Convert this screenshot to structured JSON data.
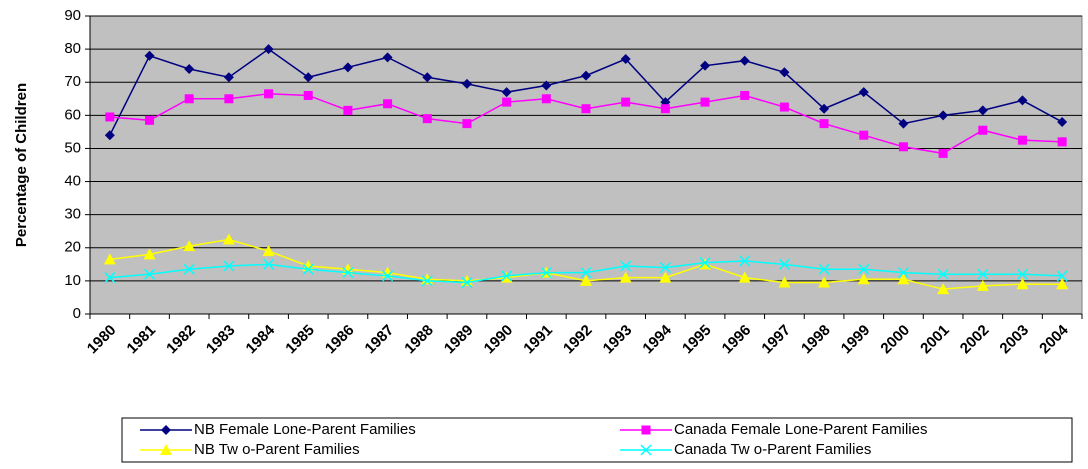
{
  "chart_data": {
    "type": "line",
    "y_label": "Percentage of Children",
    "categories": [
      "1980",
      "1981",
      "1982",
      "1983",
      "1984",
      "1985",
      "1986",
      "1987",
      "1988",
      "1989",
      "1990",
      "1991",
      "1992",
      "1993",
      "1994",
      "1995",
      "1996",
      "1997",
      "1998",
      "1999",
      "2000",
      "2001",
      "2002",
      "2003",
      "2004"
    ],
    "series": [
      {
        "name": "NB Female Lone-Parent Families",
        "color": "#000080",
        "marker": "diamond",
        "values": [
          54,
          78,
          74,
          71.5,
          80,
          71.5,
          74.5,
          77.5,
          71.5,
          69.5,
          67,
          69,
          72,
          77,
          64,
          75,
          76.5,
          73,
          62,
          67,
          57.5,
          60,
          61.5,
          64.5,
          58
        ]
      },
      {
        "name": "Canada Female Lone-Parent Families",
        "color": "#ff00ff",
        "marker": "square",
        "values": [
          59.5,
          58.5,
          65,
          65,
          66.5,
          66,
          61.5,
          63.5,
          59,
          57.5,
          64,
          65,
          62,
          64,
          62,
          64,
          66,
          62.5,
          57.5,
          54,
          50.5,
          48.5,
          55.5,
          52.5,
          52
        ]
      },
      {
        "name": "NB Tw o-Parent Families",
        "color": "#ffff00",
        "marker": "triangle",
        "values": [
          16.5,
          18,
          20.5,
          22.5,
          19,
          14.5,
          13.5,
          12.5,
          10.5,
          10,
          11,
          12.5,
          10,
          11,
          11,
          15,
          11,
          9.5,
          9.5,
          10.5,
          10.5,
          7.5,
          8.5,
          9,
          9
        ]
      },
      {
        "name": "Canada Tw o-Parent Families",
        "color": "#00ffff",
        "marker": "x",
        "values": [
          11,
          12,
          13.5,
          14.5,
          15,
          13.5,
          12.5,
          11.5,
          10,
          9.5,
          11.5,
          12.5,
          12.5,
          14.5,
          14,
          15.5,
          16,
          15,
          13.5,
          13.5,
          12.5,
          12,
          12,
          12,
          11.5
        ]
      }
    ],
    "ylim": [
      0,
      90
    ],
    "yticks": [
      0,
      10,
      20,
      30,
      40,
      50,
      60,
      70,
      80,
      90
    ],
    "grid": true,
    "legend": "bottom",
    "background": "#c0c0c0"
  }
}
